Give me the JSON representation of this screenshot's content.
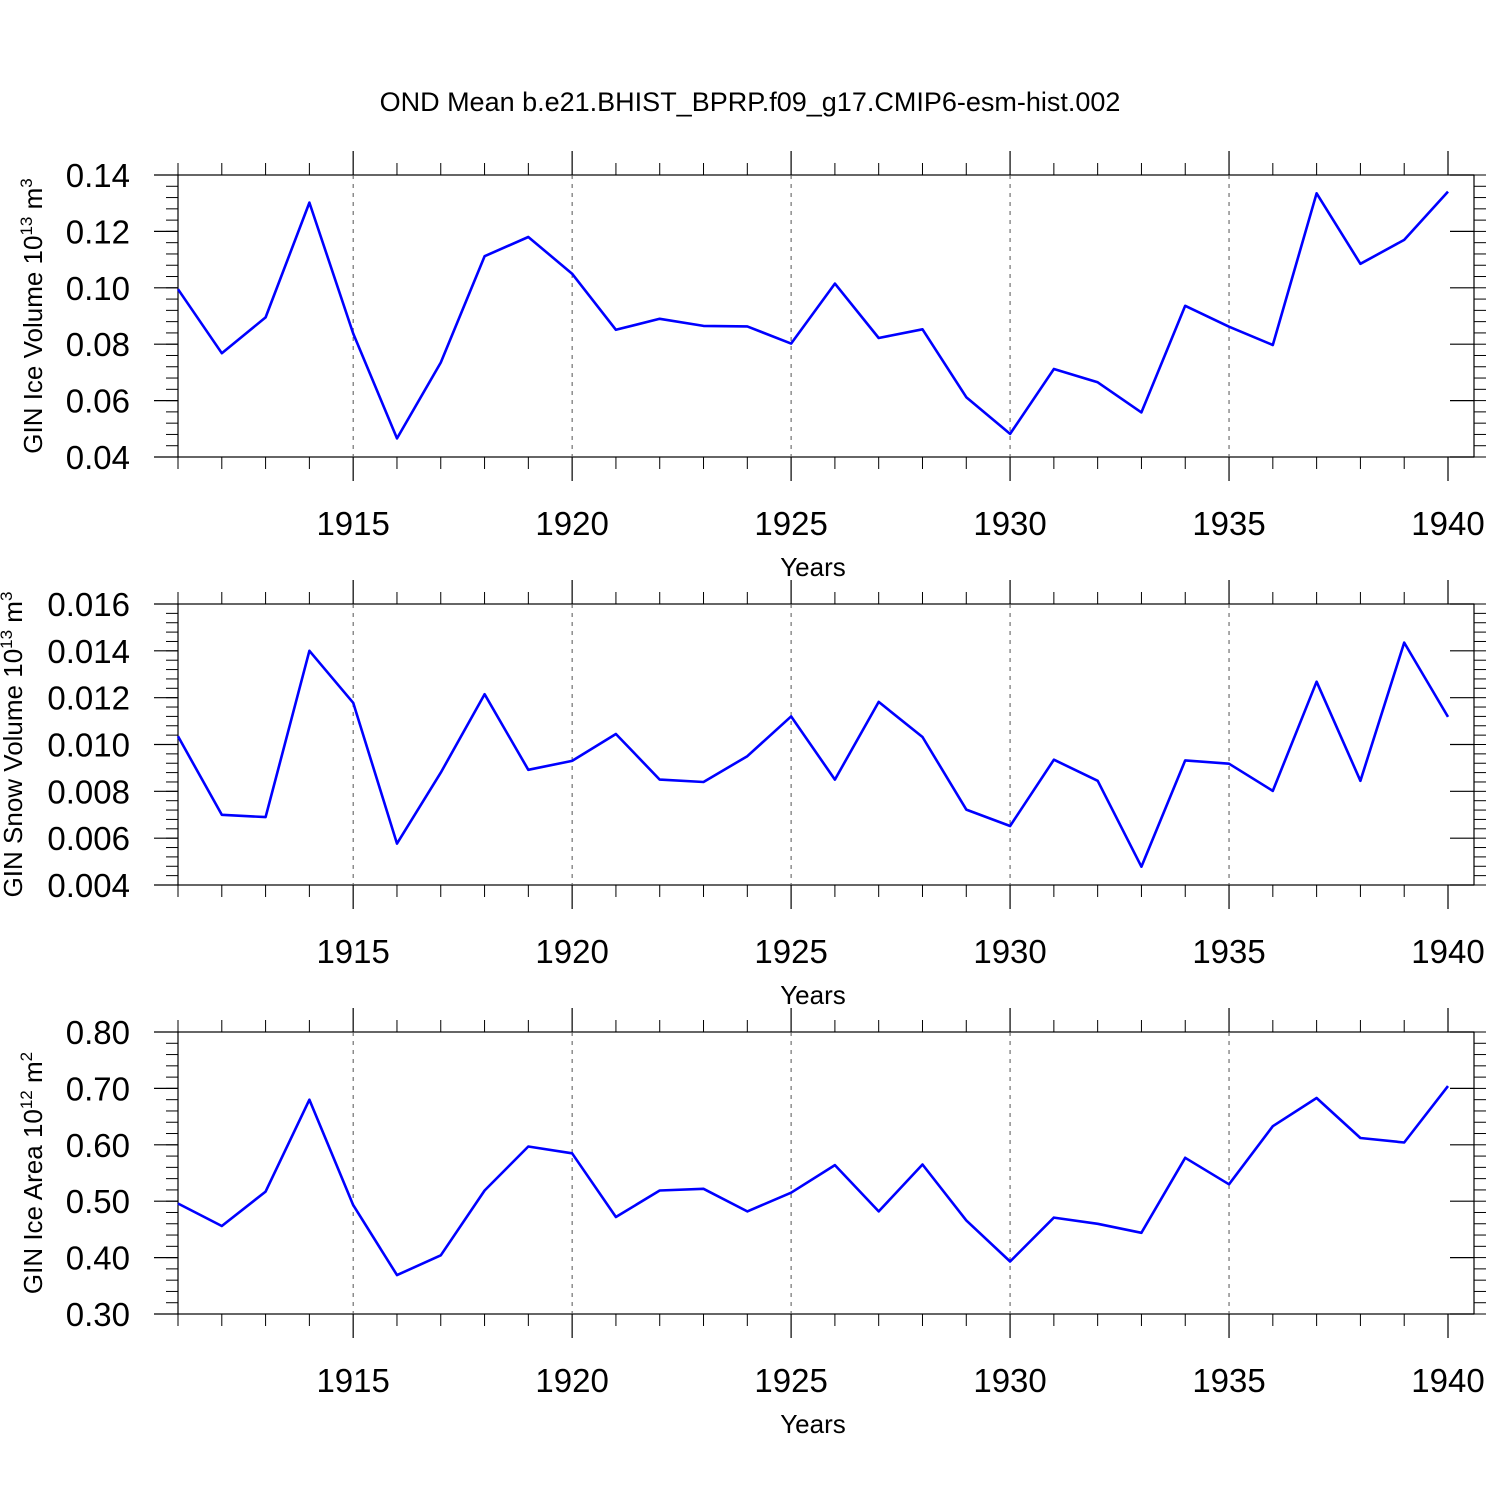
{
  "figure": {
    "title": "OND Mean b.e21.BHIST_BPRP.f09_g17.CMIP6-esm-hist.002"
  },
  "colors": {
    "series": "#0000ff",
    "grid": "#555555"
  },
  "chart_data": [
    {
      "type": "line",
      "xlabel": "Years",
      "ylabel_main": "GIN Ice Volume 10",
      "ylabel_exp": "13",
      "ylabel_unit": " m",
      "ylabel_unit_exp": "3",
      "xlim": [
        1911,
        1940
      ],
      "ylim": [
        0.04,
        0.14
      ],
      "x_ticks": [
        1915,
        1920,
        1925,
        1930,
        1935,
        1940
      ],
      "y_ticks": [
        "0.04",
        "0.06",
        "0.08",
        "0.10",
        "0.12",
        "0.14"
      ],
      "y_minor_step": 0.004,
      "grid": "vertical dashed at major x ticks",
      "x": [
        1911,
        1912,
        1913,
        1914,
        1915,
        1916,
        1917,
        1918,
        1919,
        1920,
        1921,
        1922,
        1923,
        1924,
        1925,
        1926,
        1927,
        1928,
        1929,
        1930,
        1931,
        1932,
        1933,
        1934,
        1935,
        1936,
        1937,
        1938,
        1939,
        1940
      ],
      "values": [
        0.0995,
        0.0768,
        0.0895,
        0.1302,
        0.0838,
        0.0466,
        0.0735,
        0.1112,
        0.118,
        0.105,
        0.0851,
        0.089,
        0.0865,
        0.0863,
        0.0802,
        0.1015,
        0.0822,
        0.0853,
        0.0612,
        0.0482,
        0.0712,
        0.0665,
        0.0558,
        0.0936,
        0.0862,
        0.0797,
        0.1335,
        0.1085,
        0.117,
        0.1341
      ]
    },
    {
      "type": "line",
      "xlabel": "Years",
      "ylabel_main": "GIN Snow Volume 10",
      "ylabel_exp": "13",
      "ylabel_unit": " m",
      "ylabel_unit_exp": "3",
      "xlim": [
        1911,
        1940
      ],
      "ylim": [
        0.004,
        0.016
      ],
      "x_ticks": [
        1915,
        1920,
        1925,
        1930,
        1935,
        1940
      ],
      "y_ticks": [
        "0.004",
        "0.006",
        "0.008",
        "0.010",
        "0.012",
        "0.014",
        "0.016"
      ],
      "y_minor_step": 0.0004,
      "grid": "vertical dashed at major x ticks",
      "x": [
        1911,
        1912,
        1913,
        1914,
        1915,
        1916,
        1917,
        1918,
        1919,
        1920,
        1921,
        1922,
        1923,
        1924,
        1925,
        1926,
        1927,
        1928,
        1929,
        1930,
        1931,
        1932,
        1933,
        1934,
        1935,
        1936,
        1937,
        1938,
        1939,
        1940
      ],
      "values": [
        0.01035,
        0.007,
        0.0069,
        0.014,
        0.01178,
        0.00577,
        0.0088,
        0.01215,
        0.00892,
        0.0093,
        0.01045,
        0.0085,
        0.0084,
        0.0095,
        0.0112,
        0.0085,
        0.01182,
        0.01032,
        0.00722,
        0.00652,
        0.00935,
        0.00845,
        0.00478,
        0.00932,
        0.00918,
        0.00802,
        0.01268,
        0.00845,
        0.01435,
        0.01118
      ]
    },
    {
      "type": "line",
      "xlabel": "Years",
      "ylabel_main": "GIN Ice Area 10",
      "ylabel_exp": "12",
      "ylabel_unit": " m",
      "ylabel_unit_exp": "2",
      "xlim": [
        1911,
        1940
      ],
      "ylim": [
        0.3,
        0.8
      ],
      "x_ticks": [
        1915,
        1920,
        1925,
        1930,
        1935,
        1940
      ],
      "y_ticks": [
        "0.30",
        "0.40",
        "0.50",
        "0.60",
        "0.70",
        "0.80"
      ],
      "y_minor_step": 0.02,
      "grid": "vertical dashed at major x ticks",
      "x": [
        1911,
        1912,
        1913,
        1914,
        1915,
        1916,
        1917,
        1918,
        1919,
        1920,
        1921,
        1922,
        1923,
        1924,
        1925,
        1926,
        1927,
        1928,
        1929,
        1930,
        1931,
        1932,
        1933,
        1934,
        1935,
        1936,
        1937,
        1938,
        1939,
        1940
      ],
      "values": [
        0.496,
        0.456,
        0.517,
        0.68,
        0.493,
        0.369,
        0.404,
        0.519,
        0.597,
        0.585,
        0.472,
        0.519,
        0.522,
        0.482,
        0.515,
        0.564,
        0.482,
        0.565,
        0.466,
        0.393,
        0.471,
        0.46,
        0.444,
        0.577,
        0.53,
        0.633,
        0.683,
        0.612,
        0.604,
        0.704
      ]
    }
  ]
}
